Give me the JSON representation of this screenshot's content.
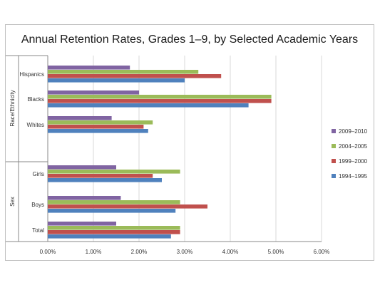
{
  "chart_data": {
    "type": "bar",
    "orientation": "horizontal",
    "title": "Annual Retention Rates, Grades 1–9, by Selected Academic Years",
    "xlabel": "",
    "ylabel": "",
    "xlim": [
      0,
      0.06
    ],
    "x_ticks": [
      "0.00%",
      "1.00%",
      "2.00%",
      "3.00%",
      "4.00%",
      "5.00%",
      "6.00%"
    ],
    "grid": true,
    "legend_position": "right",
    "categories": [
      "Hispanics",
      "Blacks",
      "Whites",
      "Girls",
      "Boys",
      "Total"
    ],
    "groups": [
      {
        "label": "Race/Ethnicity",
        "categories": [
          "Hispanics",
          "Blacks",
          "Whites"
        ]
      },
      {
        "label": "Sex",
        "categories": [
          "Girls",
          "Boys",
          "Total"
        ]
      }
    ],
    "series": [
      {
        "name": "2009–2010",
        "color": "#8064a2",
        "values": [
          0.018,
          0.02,
          0.014,
          0.015,
          0.016,
          0.015
        ]
      },
      {
        "name": "2004–2005",
        "color": "#9bbb59",
        "values": [
          0.033,
          0.049,
          0.023,
          0.029,
          0.029,
          0.029
        ]
      },
      {
        "name": "1999–2000",
        "color": "#c0504d",
        "values": [
          0.038,
          0.049,
          0.021,
          0.023,
          0.035,
          0.029
        ]
      },
      {
        "name": "1994–1995",
        "color": "#4f81bd",
        "values": [
          0.03,
          0.044,
          0.022,
          0.025,
          0.028,
          0.027
        ]
      }
    ]
  }
}
